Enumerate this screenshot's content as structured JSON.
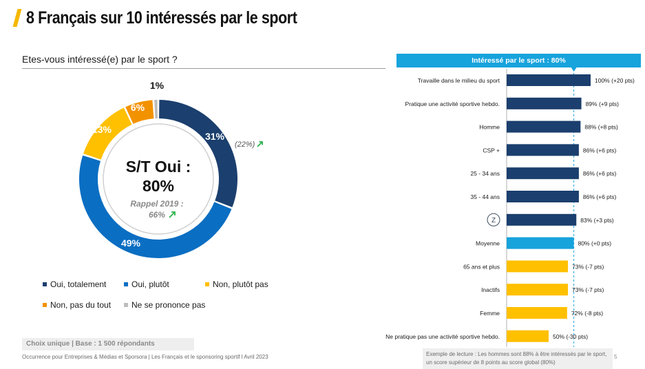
{
  "page": {
    "title": "8 Français sur 10 intéressés par le sport",
    "question": "Etes-vous intéressé(e) par le sport ?",
    "base_note": "Choix unique | Base : 1 500 répondants",
    "source": "Occurrence pour Entreprises & Médias et Sporsora | Les Français et le sponsoring sportif l Avril 2023",
    "example_note": "Exemple de lecture : Les hommes sont 88% à être intéressés par le sport, un score supérieur de 8 points au score global (80%)",
    "page_number": "5",
    "colors": {
      "accent_yellow": "#f5b800",
      "dark_blue": "#1b3f6e",
      "mid_blue": "#0a6ec2",
      "light_blue": "#17a3dc",
      "yellow": "#ffc000",
      "orange": "#f39200",
      "gray": "#bdbdbd"
    }
  },
  "chart_data": [
    {
      "type": "pie",
      "variant": "donut",
      "series": [
        {
          "name": "Oui, totalement",
          "value": 31,
          "label": "31%",
          "color": "#1b3f6e"
        },
        {
          "name": "Oui, plutôt",
          "value": 49,
          "label": "49%",
          "color": "#0a6ec2"
        },
        {
          "name": "Non, plutôt pas",
          "value": 13,
          "label": "13%",
          "color": "#ffc000"
        },
        {
          "name": "Non, pas du tout",
          "value": 6,
          "label": "6%",
          "color": "#f39200"
        },
        {
          "name": "Ne se prononce pas",
          "value": 1,
          "label": "1%",
          "color": "#bdbdbd"
        }
      ],
      "center_label_line1": "S/T Oui :",
      "center_label_line2": "80%",
      "recall_line1": "Rappel 2019 :",
      "recall_line2": "66%",
      "annotation": "(22%)",
      "legend_rows": [
        [
          "Oui, totalement",
          "Oui, plutôt",
          "Non, plutôt pas"
        ],
        [
          "Non, pas du tout",
          "Ne se prononce pas"
        ]
      ]
    },
    {
      "type": "bar",
      "orientation": "horizontal",
      "header": "Intéressé par le sport : 80%",
      "reference_value": 80,
      "xlim": [
        0,
        100
      ],
      "categories": [
        "Travaille dans le milieu du sport",
        "Pratique une activité sportive hebdo.",
        "Homme",
        "CSP +",
        "25 - 34 ans",
        "35 - 44 ans",
        "",
        "Moyenne",
        "65 ans et plus",
        "Inactifs",
        "Femme",
        "Ne pratique pas une activité sportive hebdo."
      ],
      "category_badge": {
        "index": 6,
        "text": "Z"
      },
      "values": [
        100,
        89,
        88,
        86,
        86,
        86,
        83,
        80,
        73,
        73,
        72,
        50
      ],
      "value_labels": [
        "100% (+20 pts)",
        "89% (+9 pts)",
        "88% (+8 pts)",
        "86% (+6 pts)",
        "86% (+6 pts)",
        "86% (+6 pts)",
        "83% (+3 pts)",
        "80% (+0 pts)",
        "73% (-7 pts)",
        "73% (-7 pts)",
        "72% (-8 pts)",
        "50% (-30 pts)"
      ],
      "bar_colors": [
        "#1b3f6e",
        "#1b3f6e",
        "#1b3f6e",
        "#1b3f6e",
        "#1b3f6e",
        "#1b3f6e",
        "#1b3f6e",
        "#17a3dc",
        "#ffc000",
        "#ffc000",
        "#ffc000",
        "#ffc000"
      ]
    }
  ]
}
